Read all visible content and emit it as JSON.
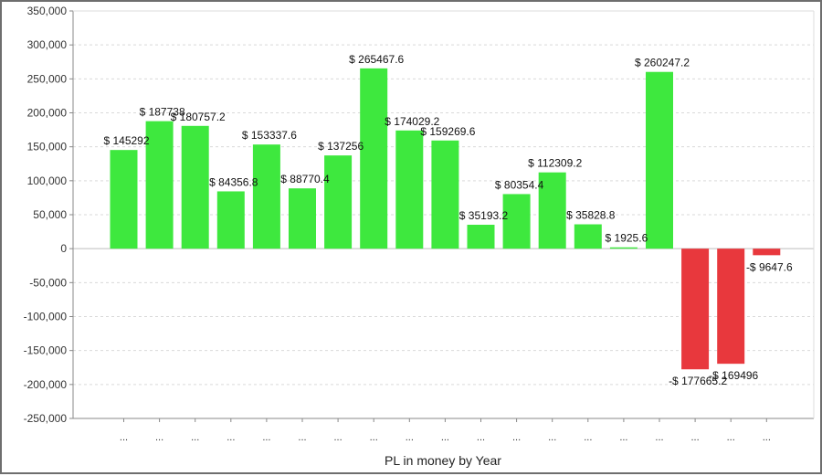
{
  "chart_data": {
    "type": "bar",
    "title": "",
    "xlabel": "PL in money by Year",
    "ylabel": "",
    "ylim": [
      -250000,
      350000
    ],
    "yticks": [
      350000,
      300000,
      250000,
      200000,
      150000,
      100000,
      50000,
      0,
      -50000,
      -100000,
      -150000,
      -200000,
      -250000
    ],
    "ytick_labels": [
      "350,000",
      "300,000",
      "250,000",
      "200,000",
      "150,000",
      "100,000",
      "50,000",
      "0",
      "-50,000",
      "-100,000",
      "-150,000",
      "-200,000",
      "-250,000"
    ],
    "grid": true,
    "legend": "none",
    "categories": [
      "...",
      "...",
      "...",
      "...",
      "...",
      "...",
      "...",
      "...",
      "...",
      "...",
      "...",
      "...",
      "...",
      "...",
      "...",
      "...",
      "...",
      "...",
      "..."
    ],
    "values": [
      145292,
      187738,
      180757.2,
      84356.8,
      153337.6,
      88770.4,
      137256,
      265467.6,
      174029.2,
      159269.6,
      35193.2,
      80354.4,
      112309.2,
      35828.8,
      1925.6,
      260247.2,
      -177665.2,
      -169496,
      -9647.6
    ],
    "data_labels": [
      "$ 145292",
      "$ 187738",
      "$ 180757.2",
      "$ 84356.8",
      "$ 153337.6",
      "$ 88770.4",
      "$ 137256",
      "$ 265467.6",
      "$ 174029.2",
      "$ 159269.6",
      "$ 35193.2",
      "$ 80354.4",
      "$ 112309.2",
      "$ 35828.8",
      "$ 1925.6",
      "$ 260247.2",
      "-$ 177665.2",
      "-$ 169496",
      "-$ 9647.6"
    ],
    "colors": {
      "positive": "#3ee83e",
      "negative": "#e8383d",
      "grid": "#d9d9d9",
      "axis": "#888888"
    }
  }
}
